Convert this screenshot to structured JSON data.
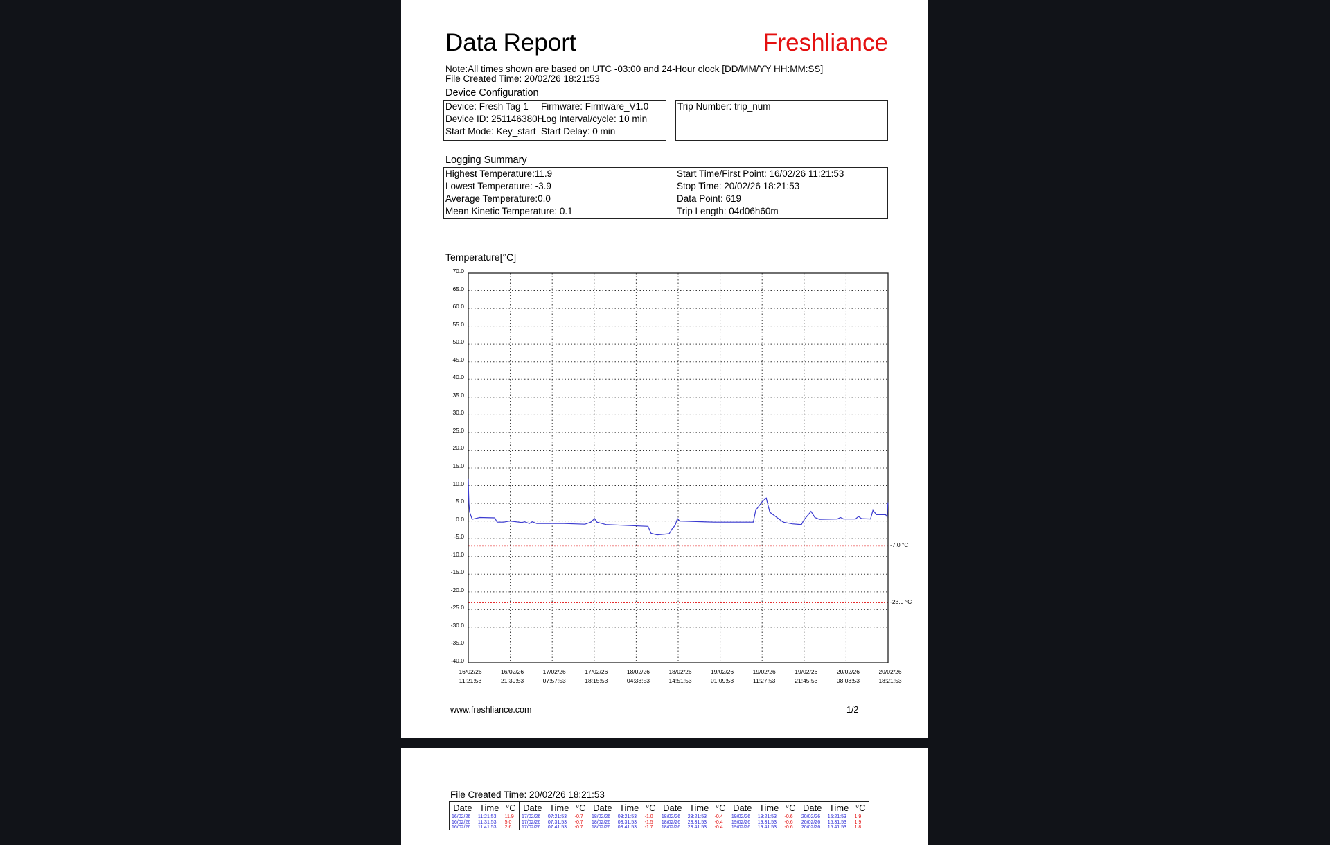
{
  "page1": {
    "title": "Data Report",
    "brand": "Freshliance",
    "note": "Note:All times shown are based on UTC -03:00   and 24-Hour clock   [DD/MM/YY HH:MM:SS]",
    "file_created": "File Created Time: 20/02/26 18:21:53",
    "device_config": {
      "heading": "Device Configuration",
      "device": "Device:  Fresh Tag 1",
      "firmware": "Firmware: Firmware_V1.0",
      "device_id": "Device ID: 251146380H",
      "log_interval": "Log Interval/cycle: 10 min",
      "start_mode": "Start Mode: Key_start",
      "start_delay": "Start Delay:  0 min",
      "trip_number": "Trip Number: trip_num"
    },
    "logging_summary": {
      "heading": "Logging Summary",
      "highest": "Highest Temperature:11.9",
      "lowest": "Lowest Temperature: -3.9",
      "average": "Average Temperature:0.0",
      "mkt": "Mean Kinetic Temperature: 0.1",
      "start": "Start Time/First Point: 16/02/26 11:21:53",
      "stop": "Stop Time: 20/02/26 18:21:53",
      "data_point": "Data Point:  619",
      "trip_length": "Trip Length:  04d06h60m"
    },
    "footer": {
      "url": "www.freshliance.com",
      "page": "1/2"
    }
  },
  "chart_data": {
    "type": "line",
    "ylabel": "Temperature[°C]",
    "ylim": [
      -40,
      70
    ],
    "xlim": [
      "16/02/26 11:21:53",
      "20/02/26 18:21:53"
    ],
    "yticks": [
      "70.0",
      "65.0",
      "60.0",
      "55.0",
      "50.0",
      "45.0",
      "40.0",
      "35.0",
      "30.0",
      "25.0",
      "20.0",
      "15.0",
      "10.0",
      "5.0",
      "0.0",
      "-5.0",
      "-10.0",
      "-15.0",
      "-20.0",
      "-25.0",
      "-30.0",
      "-35.0",
      "-40.0"
    ],
    "xticks": [
      [
        "16/02/26",
        "11:21:53"
      ],
      [
        "16/02/26",
        "21:39:53"
      ],
      [
        "17/02/26",
        "07:57:53"
      ],
      [
        "17/02/26",
        "18:15:53"
      ],
      [
        "18/02/26",
        "04:33:53"
      ],
      [
        "18/02/26",
        "14:51:53"
      ],
      [
        "19/02/26",
        "01:09:53"
      ],
      [
        "19/02/26",
        "11:27:53"
      ],
      [
        "19/02/26",
        "21:45:53"
      ],
      [
        "20/02/26",
        "08:03:53"
      ],
      [
        "20/02/26",
        "18:21:53"
      ]
    ],
    "grid": true,
    "line_color": "#3a3ad0",
    "limits": [
      {
        "value": -7.0,
        "label": "-7.0  °C",
        "color": "#e41010"
      },
      {
        "value": -23.0,
        "label": "-23.0 °C",
        "color": "#e41010"
      }
    ],
    "series": [
      {
        "points": [
          [
            "16/02/26 11:21",
            11.9
          ],
          [
            "16/02/26 11:31",
            5.0
          ],
          [
            "16/02/26 11:41",
            2.6
          ],
          [
            "16/02/26 12:19",
            0.5
          ],
          [
            "16/02/26 14:10",
            1.0
          ],
          [
            "16/02/26 17:51",
            0.9
          ],
          [
            "16/02/26 18:26",
            -0.3
          ],
          [
            "16/02/26 20:03",
            -0.3
          ],
          [
            "16/02/26 21:32",
            0.0
          ],
          [
            "17/02/26 00:29",
            -0.4
          ],
          [
            "17/02/26 01:13",
            -0.2
          ],
          [
            "17/02/26 02:20",
            -0.7
          ],
          [
            "17/02/26 03:04",
            -0.2
          ],
          [
            "17/02/26 04:10",
            -0.7
          ],
          [
            "17/02/26 10:49",
            -0.7
          ],
          [
            "17/02/26 16:00",
            -0.9
          ],
          [
            "17/02/26 17:27",
            -0.3
          ],
          [
            "17/02/26 18:21",
            0.7
          ],
          [
            "17/02/26 18:56",
            -0.3
          ],
          [
            "17/02/26 21:09",
            -1.0
          ],
          [
            "18/02/26 07:28",
            -1.5
          ],
          [
            "18/02/26 08:13",
            -3.5
          ],
          [
            "18/02/26 09:42",
            -3.9
          ],
          [
            "18/02/26 12:39",
            -3.6
          ],
          [
            "18/02/26 13:23",
            -2.2
          ],
          [
            "18/02/26 14:07",
            -1.2
          ],
          [
            "18/02/26 14:42",
            0.7
          ],
          [
            "18/02/26 15:13",
            0.0
          ],
          [
            "18/02/26 23:43",
            -0.3
          ],
          [
            "19/02/26 09:18",
            -0.3
          ],
          [
            "19/02/26 09:53",
            3.0
          ],
          [
            "19/02/26 11:31",
            5.5
          ],
          [
            "19/02/26 12:28",
            6.5
          ],
          [
            "19/02/26 13:21",
            2.5
          ],
          [
            "19/02/26 16:39",
            -0.3
          ],
          [
            "19/02/26 18:53",
            -0.8
          ],
          [
            "19/02/26 21:06",
            -1.0
          ],
          [
            "19/02/26 21:50",
            0.5
          ],
          [
            "19/02/26 23:28",
            2.7
          ],
          [
            "20/02/26 00:25",
            1.0
          ],
          [
            "20/02/26 01:32",
            0.5
          ],
          [
            "20/02/26 05:57",
            0.6
          ],
          [
            "20/02/26 06:41",
            1.0
          ],
          [
            "20/02/26 07:26",
            0.6
          ],
          [
            "20/02/26 10:23",
            0.6
          ],
          [
            "20/02/26 11:07",
            1.3
          ],
          [
            "20/02/26 11:51",
            0.7
          ],
          [
            "20/02/26 14:04",
            0.6
          ],
          [
            "20/02/26 14:40",
            3.0
          ],
          [
            "20/02/26 15:33",
            1.8
          ],
          [
            "20/02/26 17:46",
            1.8
          ],
          [
            "20/02/26 18:08",
            1.2
          ],
          [
            "20/02/26 18:21",
            5.3
          ]
        ]
      }
    ]
  },
  "page2": {
    "file_created": "File Created Time: 20/02/26 18:21:53",
    "headers": [
      "Date",
      "Time",
      "°C"
    ],
    "rows": [
      [
        [
          "16/02/26",
          "11:21:53",
          "11.9"
        ],
        [
          "17/02/26",
          "07:21:53",
          "-0.7"
        ],
        [
          "18/02/26",
          "03:21:53",
          "-1.0"
        ],
        [
          "18/02/26",
          "23:21:53",
          "-0.4"
        ],
        [
          "19/02/26",
          "19:21:53",
          "-0.6"
        ],
        [
          "20/02/26",
          "15:21:53",
          "1.9"
        ]
      ],
      [
        [
          "16/02/26",
          "11:31:53",
          "5.0"
        ],
        [
          "17/02/26",
          "07:31:53",
          "-0.7"
        ],
        [
          "18/02/26",
          "03:31:53",
          "-1.5"
        ],
        [
          "18/02/26",
          "23:31:53",
          "-0.4"
        ],
        [
          "19/02/26",
          "19:31:53",
          "-0.6"
        ],
        [
          "20/02/26",
          "15:31:53",
          "1.9"
        ]
      ],
      [
        [
          "16/02/26",
          "11:41:53",
          "2.6"
        ],
        [
          "17/02/26",
          "07:41:53",
          "-0.7"
        ],
        [
          "18/02/26",
          "03:41:53",
          "-1.7"
        ],
        [
          "18/02/26",
          "23:41:53",
          "-0.4"
        ],
        [
          "19/02/26",
          "19:41:53",
          "-0.6"
        ],
        [
          "20/02/26",
          "15:41:53",
          "1.8"
        ]
      ]
    ]
  }
}
